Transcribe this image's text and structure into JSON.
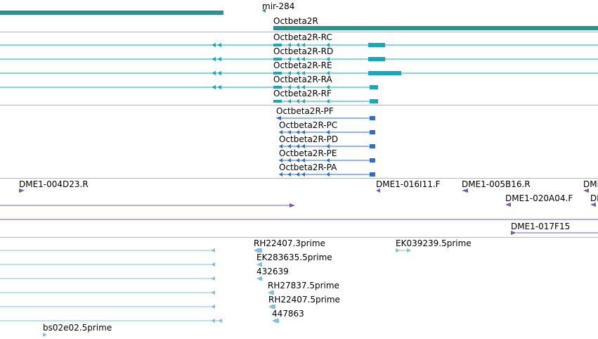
{
  "colors": {
    "gene": "#2a9090",
    "mrna": "#1aa8b8",
    "protein": "#2e6ec8",
    "clone": "#7a58b0",
    "est": "#82c0dc",
    "separator": "#b8b8b8"
  },
  "tracks": {
    "genes": {
      "features": [
        {
          "label": "mir-284"
        },
        {
          "label": "Octbeta2R"
        }
      ]
    },
    "transcripts": {
      "features": [
        {
          "label": "Octbeta2R-RC"
        },
        {
          "label": "Octbeta2R-RD"
        },
        {
          "label": "Octbeta2R-RE"
        },
        {
          "label": "Octbeta2R-RA"
        },
        {
          "label": "Octbeta2R-RF"
        }
      ]
    },
    "polypeptides": {
      "features": [
        {
          "label": "Octbeta2R-PF"
        },
        {
          "label": "Octbeta2R-PC"
        },
        {
          "label": "Octbeta2R-PD"
        },
        {
          "label": "Octbeta2R-PE"
        },
        {
          "label": "Octbeta2R-PA"
        }
      ]
    },
    "clones": {
      "features": [
        {
          "label": "DME1-004D23.R"
        },
        {
          "label": "DME1-016I11.F"
        },
        {
          "label": "DME1-005B16.R"
        },
        {
          "label": "DMI"
        },
        {
          "label": "DME1-020A04.F"
        },
        {
          "label": "DI"
        },
        {
          "label": "DME1-017F15"
        }
      ]
    },
    "ests": {
      "features": [
        {
          "label": "RH22407.3prime"
        },
        {
          "label": "EK039239.5prime"
        },
        {
          "label": "EK283635.5prime"
        },
        {
          "label": "432639"
        },
        {
          "label": "RH27837.5prime"
        },
        {
          "label": "RH22407.5prime"
        },
        {
          "label": "447863"
        },
        {
          "label": "bs02e02.5prime"
        }
      ]
    }
  }
}
